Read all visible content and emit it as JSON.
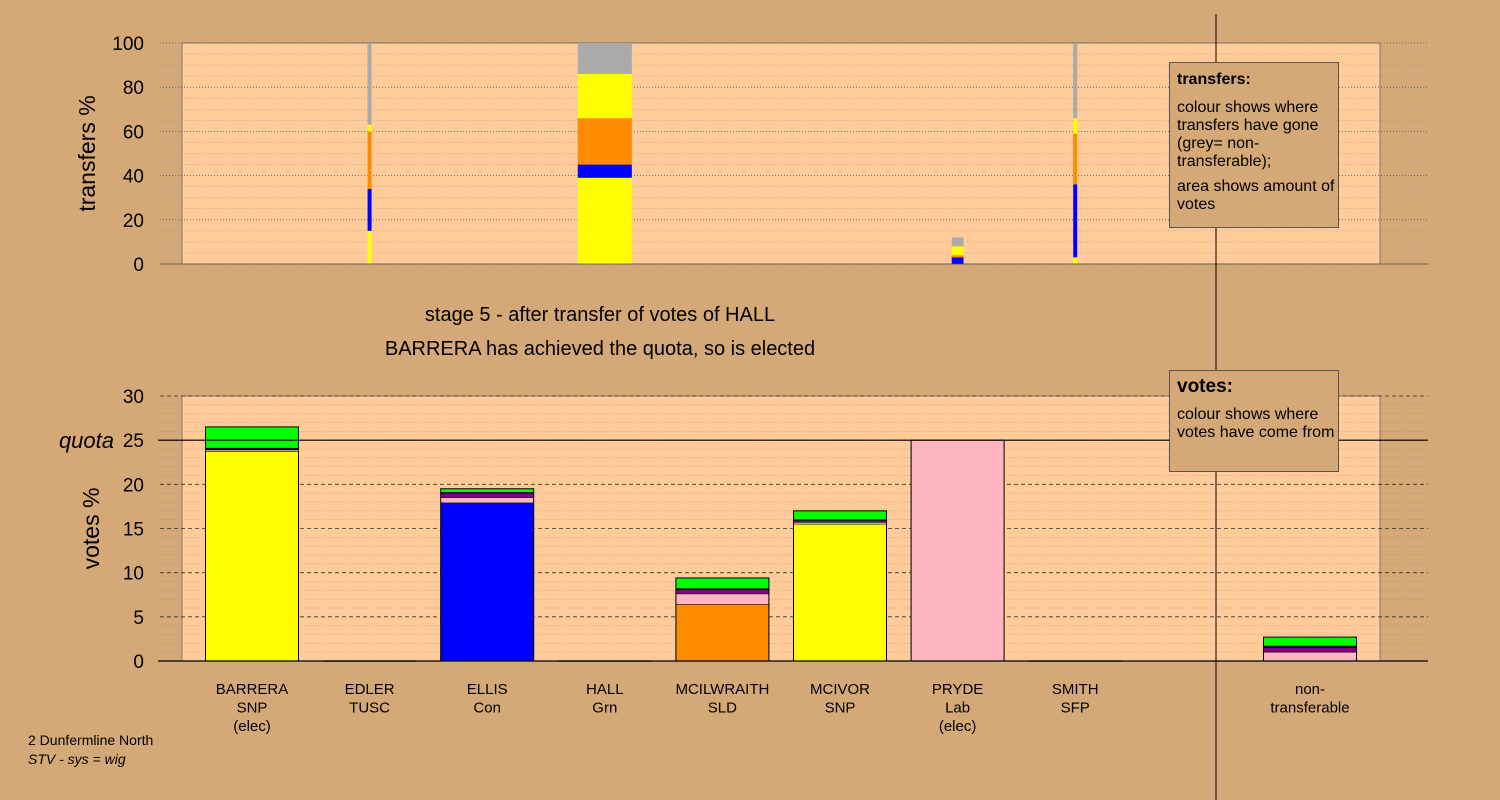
{
  "colors": {
    "background": "#d4a877",
    "panel": "#ffcc99",
    "SNP": "#ffff00",
    "Con": "#0000ff",
    "SLD": "#ff8c00",
    "Lab": "#ffb6c1",
    "Grn": "#00ff00",
    "TUSC": "#800080",
    "SFP": "#333333",
    "non_transferable": "#aaaaaa"
  },
  "stage": {
    "line1": "stage 5 - after transfer of votes of HALL",
    "line2": "BARRERA has achieved the quota, so is elected"
  },
  "legend_transfers": {
    "title": "transfers:",
    "text1": "colour shows where transfers have gone (grey= non-transferable);",
    "text2": "area shows amount of votes"
  },
  "legend_votes": {
    "title": "votes:",
    "text1": "colour shows where votes have come from"
  },
  "footer": {
    "line1": "2 Dunfermline North",
    "line2": "STV - sys = wig"
  },
  "chart_data": [
    {
      "type": "bar",
      "name": "transfers",
      "ylabel": "transfers %",
      "ylim": [
        0,
        100
      ],
      "yticks": [
        0,
        20,
        40,
        60,
        80,
        100
      ],
      "grid": true,
      "columns": [
        {
          "candidate": "EDLER",
          "width": 0.01,
          "segments": [
            {
              "party": "SNP",
              "value": 15
            },
            {
              "party": "Con",
              "value": 19
            },
            {
              "party": "SLD",
              "value": 26
            },
            {
              "party": "SNP",
              "value": 3
            },
            {
              "party": "non_transferable",
              "value": 37
            }
          ]
        },
        {
          "candidate": "HALL",
          "width": 0.55,
          "segments": [
            {
              "party": "SNP",
              "value": 39
            },
            {
              "party": "Con",
              "value": 6
            },
            {
              "party": "SLD",
              "value": 21
            },
            {
              "party": "SNP",
              "value": 20
            },
            {
              "party": "non_transferable",
              "value": 14
            }
          ]
        },
        {
          "candidate": "PRYDE",
          "width": 0.12,
          "segments": [
            {
              "party": "Con",
              "value": 3
            },
            {
              "party": "SLD",
              "value": 1
            },
            {
              "party": "SNP",
              "value": 4
            },
            {
              "party": "non_transferable",
              "value": 4
            }
          ]
        },
        {
          "candidate": "SMITH",
          "width": 0.01,
          "segments": [
            {
              "party": "SNP",
              "value": 3
            },
            {
              "party": "Con",
              "value": 33
            },
            {
              "party": "SLD",
              "value": 23
            },
            {
              "party": "SNP",
              "value": 7
            },
            {
              "party": "non_transferable",
              "value": 34
            }
          ]
        }
      ]
    },
    {
      "type": "bar",
      "name": "votes",
      "ylabel": "votes %",
      "ylim": [
        0,
        30
      ],
      "yticks": [
        0,
        5,
        10,
        15,
        20,
        25,
        30
      ],
      "quota": 25,
      "quota_label": "quota",
      "grid": true,
      "categories": [
        {
          "name": "BARRERA",
          "party": "SNP",
          "elected": "(elec)"
        },
        {
          "name": "EDLER",
          "party": "TUSC",
          "elected": ""
        },
        {
          "name": "ELLIS",
          "party": "Con",
          "elected": ""
        },
        {
          "name": "HALL",
          "party": "Grn",
          "elected": ""
        },
        {
          "name": "MCILWRAITH",
          "party": "SLD",
          "elected": ""
        },
        {
          "name": "MCIVOR",
          "party": "SNP",
          "elected": ""
        },
        {
          "name": "PRYDE",
          "party": "Lab",
          "elected": "(elec)"
        },
        {
          "name": "SMITH",
          "party": "SFP",
          "elected": ""
        }
      ],
      "nontransferable_label": "non-transferable",
      "bars": [
        {
          "candidate": "BARRERA",
          "segments": [
            {
              "party": "SNP",
              "value": 23.7
            },
            {
              "party": "Lab",
              "value": 0.2
            },
            {
              "party": "TUSC",
              "value": 0.1
            },
            {
              "party": "SFP",
              "value": 0.1
            },
            {
              "party": "Grn",
              "value": 2.4
            }
          ]
        },
        {
          "candidate": "EDLER",
          "segments": []
        },
        {
          "candidate": "ELLIS",
          "segments": [
            {
              "party": "Con",
              "value": 17.9
            },
            {
              "party": "Lab",
              "value": 0.6
            },
            {
              "party": "TUSC",
              "value": 0.5
            },
            {
              "party": "SFP",
              "value": 0.1
            },
            {
              "party": "Grn",
              "value": 0.4
            }
          ]
        },
        {
          "candidate": "HALL",
          "segments": []
        },
        {
          "candidate": "MCILWRAITH",
          "segments": [
            {
              "party": "SLD",
              "value": 6.4
            },
            {
              "party": "Lab",
              "value": 1.2
            },
            {
              "party": "TUSC",
              "value": 0.5
            },
            {
              "party": "SFP",
              "value": 0.1
            },
            {
              "party": "Grn",
              "value": 1.2
            }
          ]
        },
        {
          "candidate": "MCIVOR",
          "segments": [
            {
              "party": "SNP",
              "value": 15.5
            },
            {
              "party": "Lab",
              "value": 0.2
            },
            {
              "party": "TUSC",
              "value": 0.2
            },
            {
              "party": "SFP",
              "value": 0.1
            },
            {
              "party": "Grn",
              "value": 1.0
            }
          ]
        },
        {
          "candidate": "PRYDE",
          "segments": [
            {
              "party": "Lab",
              "value": 25.0
            }
          ]
        },
        {
          "candidate": "SMITH",
          "segments": []
        }
      ],
      "nontransferable": [
        {
          "party": "Lab",
          "value": 1.0
        },
        {
          "party": "TUSC",
          "value": 0.5
        },
        {
          "party": "SFP",
          "value": 0.1
        },
        {
          "party": "Con",
          "value": 0.1
        },
        {
          "party": "Grn",
          "value": 1.0
        }
      ]
    }
  ]
}
